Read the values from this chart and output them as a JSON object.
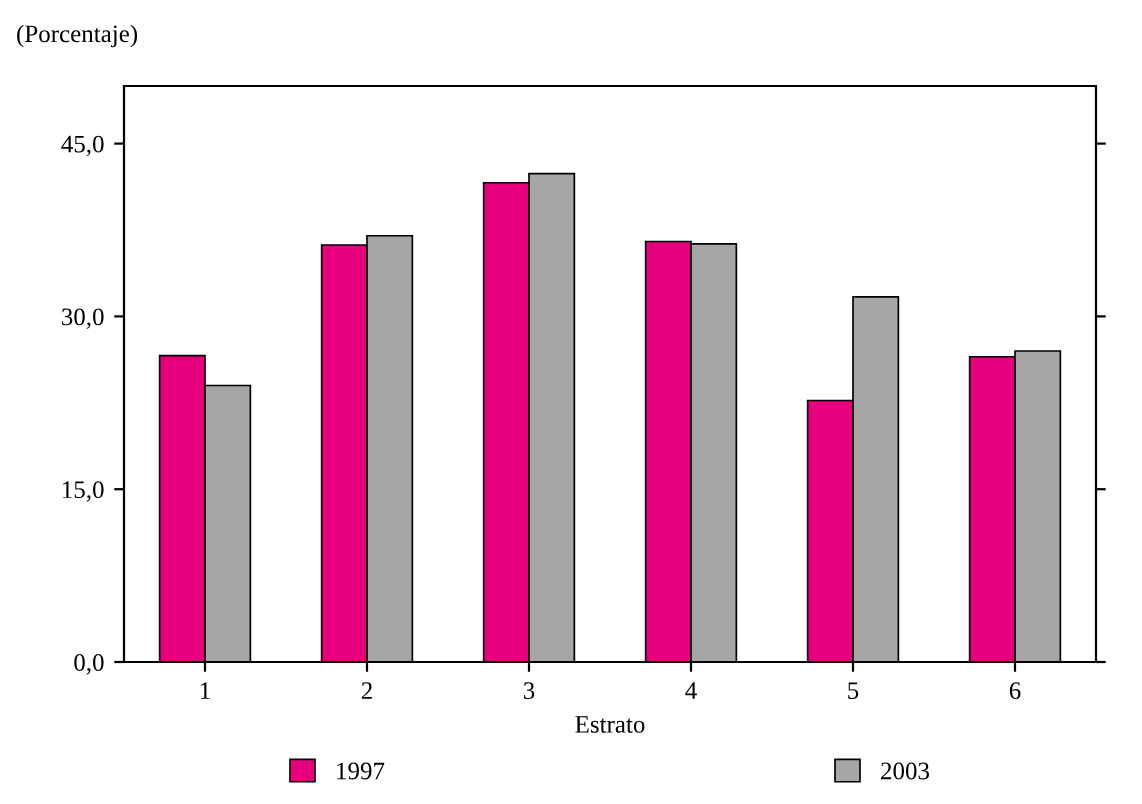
{
  "chart_data": {
    "type": "bar",
    "ylabel": "(Porcentaje)",
    "xlabel": "Estrato",
    "categories": [
      "1",
      "2",
      "3",
      "4",
      "5",
      "6"
    ],
    "series": [
      {
        "name": "1997",
        "color": "#e6007e",
        "values": [
          26.6,
          36.2,
          41.6,
          36.5,
          22.7,
          26.5
        ]
      },
      {
        "name": "2003",
        "color": "#a6a6a6",
        "values": [
          24.0,
          37.0,
          42.4,
          36.3,
          31.7,
          27.0
        ]
      }
    ],
    "ylim": [
      0,
      50
    ],
    "yticks": [
      {
        "value": 0,
        "label": "0,0"
      },
      {
        "value": 15,
        "label": "15,0"
      },
      {
        "value": 30,
        "label": "30,0"
      },
      {
        "value": 45,
        "label": "45,0"
      }
    ],
    "grid": false,
    "legend": "bottom"
  }
}
